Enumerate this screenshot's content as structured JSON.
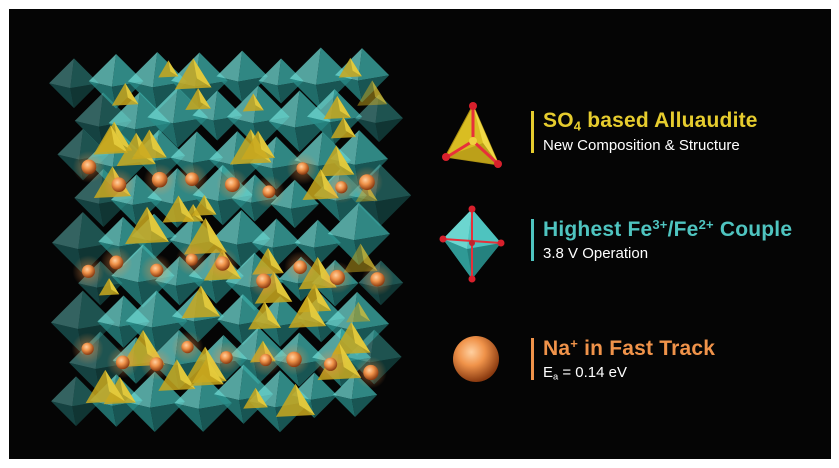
{
  "colors": {
    "background": "#050505",
    "so4": "#e6cc2e",
    "fe": "#4fc4c0",
    "na": "#f0934a"
  },
  "legend": [
    {
      "icon": "so4-tetrahedron-icon",
      "title_a": "SO",
      "title_sub": "4",
      "title_b": " based Alluaudite",
      "subtitle": "New Composition & Structure"
    },
    {
      "icon": "fe-octahedron-icon",
      "title_a": "Highest Fe",
      "title_sup1": "3+",
      "title_b": "/Fe",
      "title_sup2": "2+",
      "title_c": " Couple",
      "subtitle": "3.8 V Operation"
    },
    {
      "icon": "na-ion-sphere-icon",
      "title_a": "Na",
      "title_sup": "+",
      "title_b": " in Fast Track",
      "sub_a": "E",
      "sub_sub": "a",
      "sub_b": " = 0.14 eV"
    }
  ]
}
